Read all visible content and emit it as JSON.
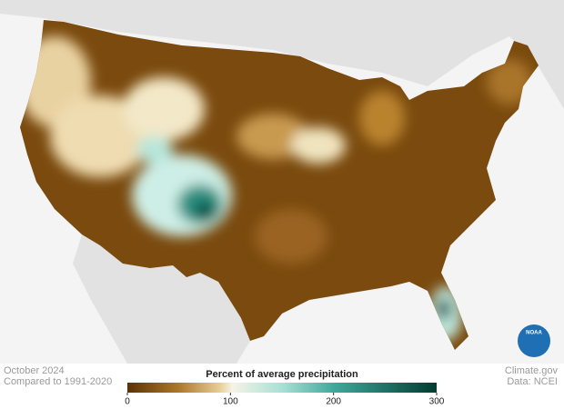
{
  "caption": {
    "period": "October 2024",
    "baseline": "Compared to 1991-2020"
  },
  "legend": {
    "title": "Percent of average precipitation",
    "range": [
      0,
      300
    ],
    "ticks": [
      0,
      100,
      200,
      300
    ]
  },
  "credits": {
    "source": "Climate.gov",
    "data": "Data: NCEI",
    "logo": "NOAA"
  }
}
